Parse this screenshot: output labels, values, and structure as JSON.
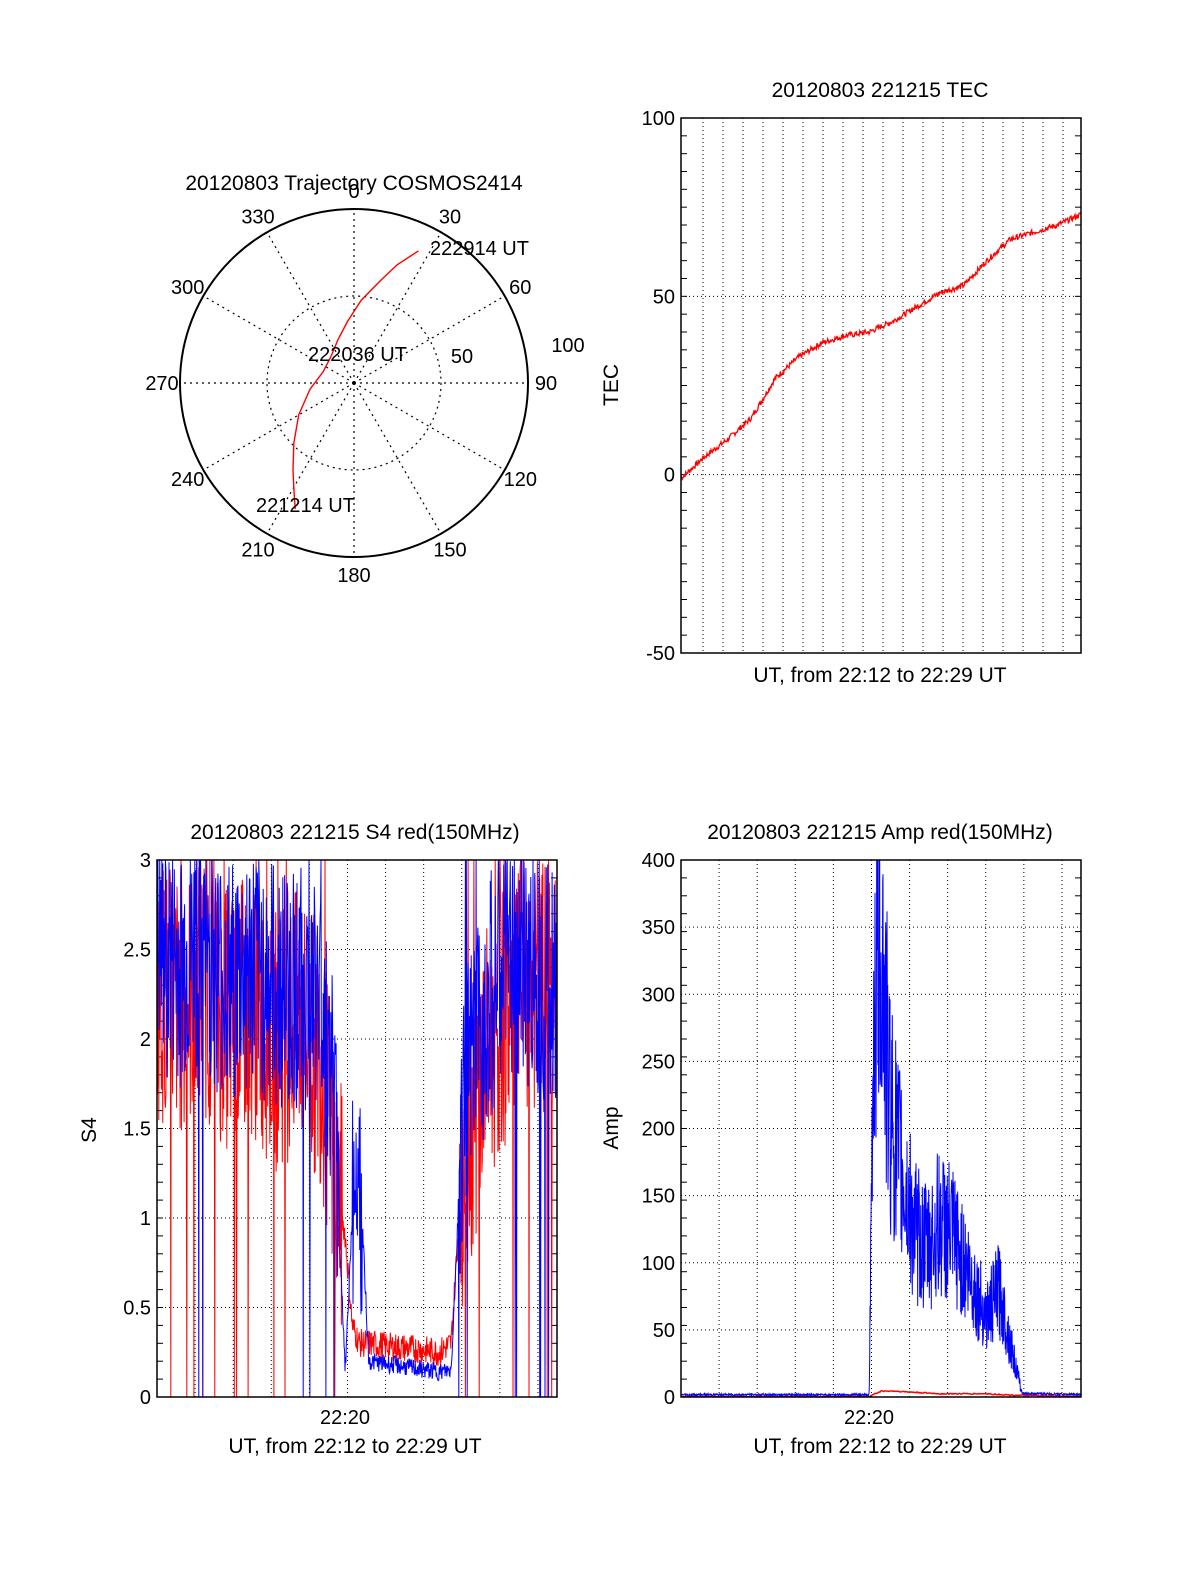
{
  "chart_data": [
    {
      "type": "polar",
      "title": "20120803 Trajectory COSMOS2414",
      "azimuth_labels": [
        "0",
        "30",
        "60",
        "90",
        "120",
        "150",
        "180",
        "210",
        "240",
        "270",
        "300",
        "330"
      ],
      "radial_labels": [
        "50",
        "100"
      ],
      "colors": {
        "track": "#ff0000"
      },
      "series": [
        {
          "points": [
            {
              "az": 205,
              "el": 18
            },
            {
              "az": 209,
              "el": 26
            },
            {
              "az": 215,
              "el": 35
            },
            {
              "az": 225,
              "el": 46
            },
            {
              "az": 240,
              "el": 57
            },
            {
              "az": 262,
              "el": 67
            },
            {
              "az": 290,
              "el": 73
            },
            {
              "az": 318,
              "el": 72
            },
            {
              "az": 340,
              "el": 66
            },
            {
              "az": 354,
              "el": 58
            },
            {
              "az": 5,
              "el": 47
            },
            {
              "az": 14,
              "el": 36
            },
            {
              "az": 20,
              "el": 25
            },
            {
              "az": 26,
              "el": 14
            }
          ]
        }
      ],
      "annotations": [
        {
          "text": "222914 UT"
        },
        {
          "text": "222036 UT"
        },
        {
          "text": "221214 UT"
        }
      ]
    },
    {
      "type": "line",
      "title": "20120803 221215 TEC",
      "xlabel": "UT, from 22:12 to 22:29 UT",
      "ylabel": "TEC",
      "ylim": [
        -50,
        100
      ],
      "yticks": [
        "-50",
        "0",
        "50",
        "100"
      ],
      "grid": true,
      "colors": {
        "line": "#ff0000"
      },
      "x_minutes_from_start": [
        0,
        1,
        2,
        3,
        4,
        5,
        6,
        7,
        8,
        9,
        10,
        11,
        12,
        13,
        14,
        15,
        16,
        17
      ],
      "series": [
        {
          "values": [
            -1,
            5,
            10,
            16,
            27,
            33,
            37,
            39,
            40,
            43,
            47,
            51,
            53,
            60,
            66,
            68,
            70,
            73
          ]
        }
      ]
    },
    {
      "type": "line",
      "title": "20120803 221215 S4 red(150MHz)",
      "xlabel": "UT, from 22:12 to 22:29 UT",
      "ylabel": "S4",
      "ylim": [
        0,
        3
      ],
      "yticks": [
        "0",
        "0.5",
        "1",
        "1.5",
        "2",
        "2.5",
        "3"
      ],
      "xtick_label": "22:20",
      "grid": true,
      "colors": {
        "red": "#ff0000",
        "blue": "#0000ff"
      },
      "series": [
        {
          "name": "red",
          "x_minutes_from_start": [
            0,
            1,
            2,
            3,
            4,
            5,
            6,
            7,
            7.5,
            8,
            8.3,
            8.6,
            9,
            10,
            11,
            12,
            12.5,
            13,
            14,
            15,
            16,
            17
          ],
          "values": [
            2.3,
            2.2,
            2.3,
            2.1,
            2.2,
            2.0,
            2.1,
            1.9,
            1.3,
            0.9,
            0.4,
            0.3,
            0.3,
            0.28,
            0.27,
            0.25,
            0.3,
            1.3,
            1.9,
            2.2,
            2.3,
            2.2
          ]
        },
        {
          "name": "blue",
          "x_minutes_from_start": [
            0,
            1,
            2,
            3,
            4,
            5,
            6,
            7,
            7.5,
            8,
            8.5,
            9,
            10,
            11,
            12,
            12.5,
            13,
            14,
            15,
            16,
            17
          ],
          "values": [
            2.5,
            2.4,
            2.5,
            2.3,
            2.4,
            2.3,
            2.3,
            2.2,
            1.7,
            0.15,
            1.6,
            0.2,
            0.18,
            0.16,
            0.14,
            0.15,
            1.6,
            2.2,
            2.5,
            2.4,
            2.3
          ]
        }
      ]
    },
    {
      "type": "line",
      "title": "20120803 221215 Amp red(150MHz)",
      "xlabel": "UT, from 22:12 to 22:29 UT",
      "ylabel": "Amp",
      "ylim": [
        0,
        400
      ],
      "yticks": [
        "0",
        "50",
        "100",
        "150",
        "200",
        "250",
        "300",
        "350",
        "400"
      ],
      "xtick_label": "22:20",
      "grid": true,
      "colors": {
        "red": "#ff0000",
        "blue": "#0000ff"
      },
      "series": [
        {
          "name": "blue",
          "x_minutes_from_start": [
            0,
            7,
            8.0,
            8.2,
            8.5,
            8.8,
            9.2,
            9.6,
            10,
            10.5,
            11,
            11.5,
            12,
            12.5,
            13,
            13.5,
            14,
            14.5,
            17
          ],
          "values": [
            1,
            1,
            1,
            300,
            360,
            230,
            180,
            150,
            120,
            110,
            130,
            120,
            100,
            80,
            60,
            80,
            40,
            2,
            1
          ]
        },
        {
          "name": "red",
          "x_minutes_from_start": [
            0,
            8,
            8.5,
            9,
            10,
            11,
            12,
            13,
            14,
            17
          ],
          "values": [
            0,
            0,
            4,
            4,
            3,
            2,
            2,
            2,
            1,
            0
          ]
        }
      ]
    }
  ]
}
